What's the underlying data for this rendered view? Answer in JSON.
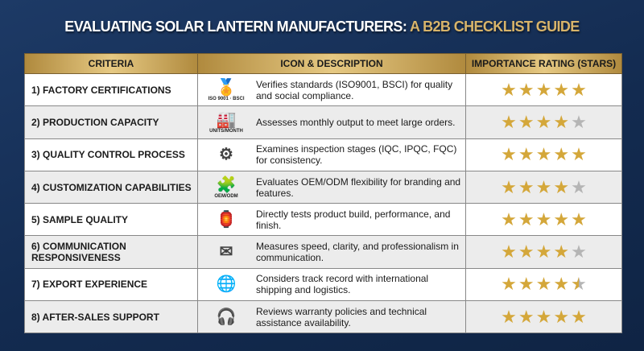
{
  "title": {
    "main": "EVALUATING SOLAR LANTERN MANUFACTURERS:",
    "accent": "A B2B CHECKLIST GUIDE"
  },
  "headers": [
    "CRITERIA",
    "ICON & DESCRIPTION",
    "IMPORTANCE RATING (STARS)"
  ],
  "colors": {
    "star_on": "#d4a73a",
    "star_off": "#b5b5b5",
    "accent": "#d8b46a"
  },
  "rows": [
    {
      "criteria": "1) Factory Certifications",
      "icon": "iso-bsci-badge-icon",
      "icon_glyph": "🏅",
      "icon_label": "ISO 9001 · BSCI",
      "description": "Verifies standards (ISO9001, BSCI) for quality and social compliance.",
      "rating": 5
    },
    {
      "criteria": "2) Production Capacity",
      "icon": "factory-icon",
      "icon_glyph": "🏭",
      "icon_label": "UNITS/MONTH",
      "description": "Assesses monthly output to meet large orders.",
      "rating": 4
    },
    {
      "criteria": "3) Quality Control Process",
      "icon": "gear-magnifier-icon",
      "icon_glyph": "⚙",
      "icon_label": "",
      "description": "Examines inspection stages (IQC, IPQC, FQC) for consistency.",
      "rating": 5
    },
    {
      "criteria": "4) Customization Capabilities",
      "icon": "puzzle-gear-icon",
      "icon_glyph": "🧩",
      "icon_label": "OEM/ODM",
      "description": "Evaluates OEM/ODM flexibility for branding and features.",
      "rating": 4
    },
    {
      "criteria": "5) Sample Quality",
      "icon": "lantern-check-icon",
      "icon_glyph": "🏮",
      "icon_label": "",
      "description": "Directly tests product build, performance, and finish.",
      "rating": 5
    },
    {
      "criteria": "6) Communication Responsiveness",
      "icon": "chat-clock-mail-icon",
      "icon_glyph": "✉",
      "icon_label": "",
      "description": "Measures speed, clarity, and professionalism in communication.",
      "rating": 4
    },
    {
      "criteria": "7) Export Experience",
      "icon": "globe-ship-icon",
      "icon_glyph": "🌐",
      "icon_label": "",
      "description": "Considers track record with international shipping and logistics.",
      "rating": 4.5
    },
    {
      "criteria": "8) After-Sales Support",
      "icon": "headset-icon",
      "icon_glyph": "🎧",
      "icon_label": "",
      "description": "Reviews warranty policies and technical assistance availability.",
      "rating": 5
    }
  ]
}
